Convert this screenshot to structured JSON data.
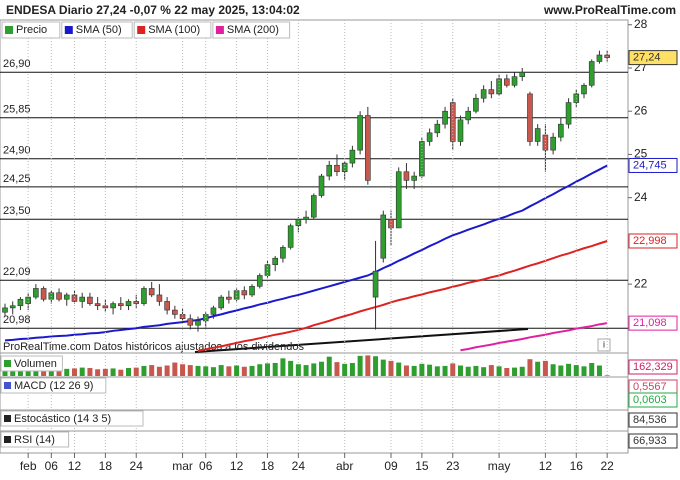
{
  "header": {
    "title": "ENDESA Diario 27,24 -0,07 % 22 may 2025, 13:04:02",
    "site": "www.ProRealTime.com"
  },
  "chart_data": {
    "type": "candlestick",
    "categories": [
      null,
      null,
      null,
      "feb",
      null,
      null,
      "06",
      null,
      null,
      "12",
      null,
      null,
      null,
      "18",
      null,
      null,
      null,
      "24",
      null,
      null,
      null,
      null,
      null,
      "mar",
      null,
      null,
      "06",
      null,
      null,
      null,
      "12",
      null,
      null,
      null,
      "18",
      null,
      null,
      null,
      "24",
      null,
      null,
      null,
      null,
      null,
      "abr",
      null,
      null,
      null,
      null,
      null,
      "09",
      null,
      null,
      null,
      "15",
      null,
      null,
      null,
      "23",
      null,
      null,
      null,
      null,
      null,
      "may",
      null,
      null,
      null,
      null,
      null,
      "12",
      null,
      null,
      null,
      "16",
      null,
      null,
      null,
      "22"
    ],
    "open": [
      21.35,
      21.45,
      21.5,
      21.55,
      21.7,
      21.9,
      21.65,
      21.8,
      21.65,
      21.75,
      21.6,
      21.7,
      21.55,
      21.5,
      21.45,
      21.55,
      21.5,
      21.6,
      21.55,
      21.9,
      21.75,
      21.6,
      21.4,
      21.3,
      21.2,
      21.05,
      21.15,
      21.3,
      21.45,
      21.7,
      21.65,
      21.85,
      21.75,
      21.95,
      22.2,
      22.45,
      22.6,
      22.85,
      23.35,
      23.5,
      23.55,
      24.05,
      24.5,
      24.75,
      24.6,
      24.8,
      25.1,
      25.9,
      21.7,
      22.6,
      23.5,
      23.3,
      24.6,
      24.4,
      24.5,
      25.3,
      25.5,
      25.7,
      26.2,
      25.3,
      25.8,
      26.0,
      26.3,
      26.5,
      26.4,
      26.75,
      26.6,
      26.8,
      26.4,
      25.3,
      25.45,
      25.1,
      25.4,
      25.7,
      26.2,
      26.4,
      26.6,
      27.15,
      27.3
    ],
    "high": [
      21.55,
      21.6,
      21.7,
      21.8,
      22.0,
      21.95,
      21.85,
      21.9,
      21.8,
      21.85,
      21.8,
      21.8,
      21.7,
      21.65,
      21.6,
      21.7,
      21.65,
      21.75,
      21.95,
      22.05,
      22.0,
      21.7,
      21.5,
      21.45,
      21.3,
      21.25,
      21.35,
      21.5,
      21.75,
      21.85,
      21.9,
      21.95,
      22.0,
      22.25,
      22.55,
      22.65,
      22.9,
      23.4,
      23.55,
      23.7,
      24.1,
      24.55,
      24.85,
      25.0,
      24.85,
      25.2,
      26.0,
      26.1,
      23.0,
      23.7,
      23.7,
      24.7,
      24.8,
      24.6,
      25.4,
      25.6,
      25.8,
      26.1,
      26.3,
      25.9,
      26.1,
      26.4,
      26.6,
      26.7,
      26.85,
      26.85,
      26.9,
      27.0,
      26.45,
      25.7,
      25.7,
      25.5,
      25.85,
      26.3,
      26.5,
      26.65,
      27.2,
      27.4,
      27.4
    ],
    "low": [
      21.25,
      21.3,
      21.4,
      21.4,
      21.65,
      21.6,
      21.55,
      21.6,
      21.5,
      21.55,
      21.45,
      21.5,
      21.4,
      21.35,
      21.3,
      21.4,
      21.4,
      21.45,
      21.5,
      21.7,
      21.5,
      21.3,
      21.2,
      21.1,
      20.95,
      20.9,
      21.0,
      21.2,
      21.4,
      21.55,
      21.6,
      21.65,
      21.7,
      21.9,
      22.15,
      22.3,
      22.5,
      22.8,
      23.2,
      23.4,
      23.5,
      24.0,
      24.4,
      24.5,
      24.4,
      24.7,
      25.0,
      24.3,
      20.95,
      22.5,
      22.9,
      23.3,
      24.2,
      24.2,
      24.45,
      25.2,
      25.4,
      25.6,
      25.1,
      25.2,
      25.7,
      25.95,
      26.2,
      26.3,
      26.35,
      26.55,
      26.55,
      26.7,
      25.2,
      25.2,
      24.6,
      25.0,
      25.3,
      25.6,
      26.1,
      26.3,
      26.55,
      27.1,
      27.15
    ],
    "close": [
      21.45,
      21.5,
      21.65,
      21.7,
      21.9,
      21.65,
      21.8,
      21.65,
      21.75,
      21.6,
      21.7,
      21.55,
      21.5,
      21.45,
      21.55,
      21.5,
      21.6,
      21.55,
      21.9,
      21.75,
      21.6,
      21.4,
      21.3,
      21.2,
      21.05,
      21.15,
      21.3,
      21.45,
      21.7,
      21.65,
      21.85,
      21.75,
      21.95,
      22.2,
      22.45,
      22.6,
      22.85,
      23.35,
      23.5,
      23.55,
      24.05,
      24.5,
      24.75,
      24.6,
      24.8,
      25.1,
      25.9,
      24.4,
      22.3,
      23.6,
      23.3,
      24.6,
      24.4,
      24.5,
      25.3,
      25.5,
      25.7,
      26.0,
      25.3,
      25.8,
      26.0,
      26.3,
      26.5,
      26.4,
      26.75,
      26.6,
      26.8,
      26.9,
      25.3,
      25.6,
      25.1,
      25.4,
      25.7,
      26.2,
      26.4,
      26.6,
      27.15,
      27.3,
      27.24
    ],
    "price_name": "Precio",
    "up_color": "#2e9e2e",
    "down_color": "#c8574e",
    "last_label": "27,24",
    "series": [
      {
        "name": "SMA (50)",
        "color": "#1a1acc",
        "last_label": "24,745",
        "values": [
          20.7,
          20.71,
          20.73,
          20.74,
          20.76,
          20.77,
          20.79,
          20.8,
          20.81,
          20.83,
          20.84,
          20.86,
          20.87,
          20.89,
          20.92,
          20.94,
          20.96,
          20.98,
          21.01,
          21.03,
          21.05,
          21.08,
          21.1,
          21.12,
          21.15,
          21.17,
          21.21,
          21.26,
          21.3,
          21.35,
          21.39,
          21.44,
          21.48,
          21.53,
          21.57,
          21.62,
          21.66,
          21.71,
          21.75,
          21.8,
          21.85,
          21.9,
          21.95,
          22.0,
          22.05,
          22.1,
          22.15,
          22.2,
          22.28,
          22.37,
          22.45,
          22.54,
          22.62,
          22.71,
          22.79,
          22.88,
          22.96,
          23.05,
          23.13,
          23.19,
          23.26,
          23.32,
          23.38,
          23.45,
          23.51,
          23.57,
          23.64,
          23.7,
          23.8,
          23.89,
          23.99,
          24.08,
          24.18,
          24.27,
          24.37,
          24.46,
          24.56,
          24.65,
          24.745
        ]
      },
      {
        "name": "SMA (100)",
        "color": "#dd2222",
        "last_label": "22,998",
        "values": [
          null,
          null,
          null,
          null,
          null,
          null,
          null,
          null,
          null,
          null,
          null,
          null,
          null,
          null,
          null,
          null,
          null,
          null,
          null,
          null,
          null,
          null,
          null,
          null,
          null,
          20.45,
          20.49,
          20.53,
          20.56,
          20.6,
          20.64,
          20.68,
          20.71,
          20.75,
          20.79,
          20.83,
          20.86,
          20.9,
          20.94,
          20.99,
          21.05,
          21.1,
          21.15,
          21.21,
          21.26,
          21.31,
          21.37,
          21.42,
          21.47,
          21.52,
          21.58,
          21.63,
          21.67,
          21.72,
          21.76,
          21.81,
          21.85,
          21.89,
          21.94,
          21.98,
          22.03,
          22.07,
          22.11,
          22.16,
          22.2,
          22.26,
          22.31,
          22.37,
          22.43,
          22.48,
          22.54,
          22.6,
          22.66,
          22.71,
          22.77,
          22.83,
          22.88,
          22.94,
          22.998
        ]
      },
      {
        "name": "SMA (200)",
        "color": "#e020a0",
        "last_label": "21,098",
        "values": [
          null,
          null,
          null,
          null,
          null,
          null,
          null,
          null,
          null,
          null,
          null,
          null,
          null,
          null,
          null,
          null,
          null,
          null,
          null,
          null,
          null,
          null,
          null,
          null,
          null,
          null,
          null,
          null,
          null,
          null,
          null,
          null,
          null,
          null,
          null,
          null,
          null,
          null,
          null,
          null,
          null,
          null,
          null,
          null,
          null,
          null,
          null,
          null,
          null,
          null,
          null,
          null,
          null,
          null,
          null,
          null,
          null,
          null,
          null,
          20.47,
          20.5,
          20.54,
          20.57,
          20.6,
          20.64,
          20.67,
          20.7,
          20.73,
          20.77,
          20.8,
          20.83,
          20.87,
          20.9,
          20.93,
          20.97,
          21.0,
          21.03,
          21.07,
          21.098
        ]
      }
    ],
    "levels": [
      {
        "value": 26.9,
        "label": "26,90"
      },
      {
        "value": 25.85,
        "label": "25,85"
      },
      {
        "value": 24.9,
        "label": "24,90"
      },
      {
        "value": 24.25,
        "label": "24,25"
      },
      {
        "value": 23.5,
        "label": "23,50"
      },
      {
        "value": 22.09,
        "label": "22,09"
      },
      {
        "value": 20.98,
        "label": "20,98"
      }
    ],
    "ylim": [
      20.43,
      28.11
    ],
    "yticks": [
      22,
      24,
      25,
      26,
      27,
      28
    ],
    "grid": false,
    "footnote": "ProRealTime.com  Datos históricos ajustados a los dividendos",
    "info": "i"
  },
  "indicators": [
    {
      "name": "Volumen",
      "color": "#2e9e2e",
      "ylim": [
        0,
        5000
      ],
      "last_label": "162,329",
      "label_color": "#d0206a",
      "values": [
        2100,
        1800,
        2600,
        2300,
        2500,
        2200,
        1900,
        2100,
        1700,
        1800,
        2000,
        1900,
        1600,
        1700,
        1800,
        1500,
        1900,
        2000,
        2400,
        2600,
        2200,
        2500,
        3200,
        2800,
        2600,
        2400,
        2300,
        2100,
        2600,
        2300,
        2500,
        2200,
        2400,
        2800,
        3000,
        3100,
        4200,
        3600,
        2800,
        2600,
        3000,
        3400,
        4600,
        3300,
        2900,
        3100,
        4800,
        4900,
        4700,
        3900,
        3600,
        3200,
        2500,
        2400,
        2900,
        2700,
        2300,
        2400,
        3000,
        2500,
        2200,
        2400,
        2100,
        2600,
        2300,
        1900,
        2000,
        2200,
        4000,
        3400,
        3600,
        2800,
        2500,
        2900,
        2600,
        2300,
        3100,
        2500,
        162.329
      ]
    },
    {
      "name": "MACD (12 26 9)",
      "color": "#4455cc",
      "last": [
        {
          "value": 0.5567,
          "label": "0,5567",
          "color": "#cc4466"
        },
        {
          "value": 0.0603,
          "label": "0,0603",
          "color": "#22aa44"
        }
      ]
    },
    {
      "name": "Estocástico (14 3 5)",
      "color": "#222222",
      "last": [
        {
          "value": 84.536,
          "label": "84,536",
          "color": "#333333"
        }
      ]
    },
    {
      "name": "RSI (14)",
      "color": "#222222",
      "last": [
        {
          "value": 66.933,
          "label": "66,933",
          "color": "#333333"
        }
      ]
    }
  ]
}
